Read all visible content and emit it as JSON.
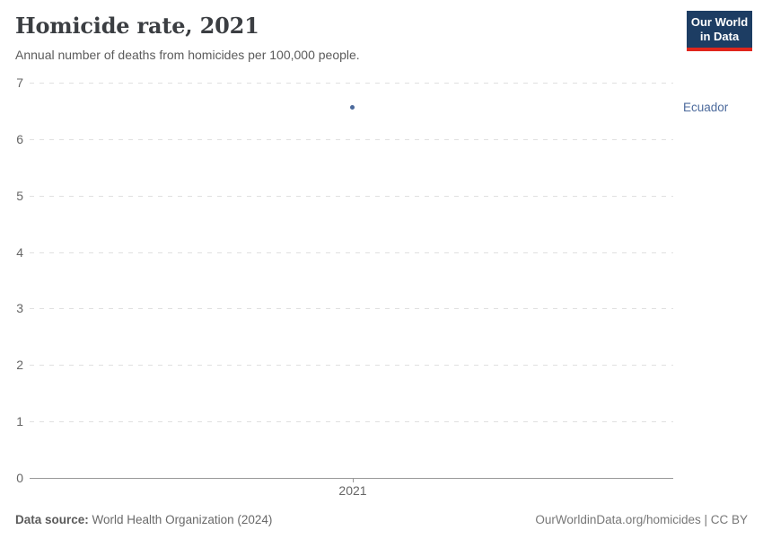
{
  "header": {
    "title": "Homicide rate, 2021",
    "subtitle": "Annual number of deaths from homicides per 100,000 people.",
    "logo": {
      "line1": "Our World",
      "line2": "in Data"
    }
  },
  "chart_data": {
    "type": "scatter",
    "title": "Homicide rate, 2021",
    "xlabel": "",
    "ylabel": "",
    "x": [
      2021
    ],
    "x_ticks": [
      "2021"
    ],
    "series": [
      {
        "name": "Ecuador",
        "x": [
          2021
        ],
        "values": [
          6.56
        ]
      }
    ],
    "ylim": [
      0,
      7
    ],
    "y_ticks": [
      0,
      1,
      2,
      3,
      4,
      5,
      6,
      7
    ],
    "grid": "horizontal-dashed",
    "legend_position": "label-right-of-plot"
  },
  "footer": {
    "source_label": "Data source:",
    "source_text": " World Health Organization (2024)",
    "credit": "OurWorldinData.org/homicides | CC BY"
  },
  "colors": {
    "accent_blue": "#4c6a9c",
    "logo_bg": "#1d3d63",
    "logo_red": "#e0261c",
    "grid": "#e0e0e0",
    "axis": "#999999",
    "tick_text": "#666666"
  }
}
